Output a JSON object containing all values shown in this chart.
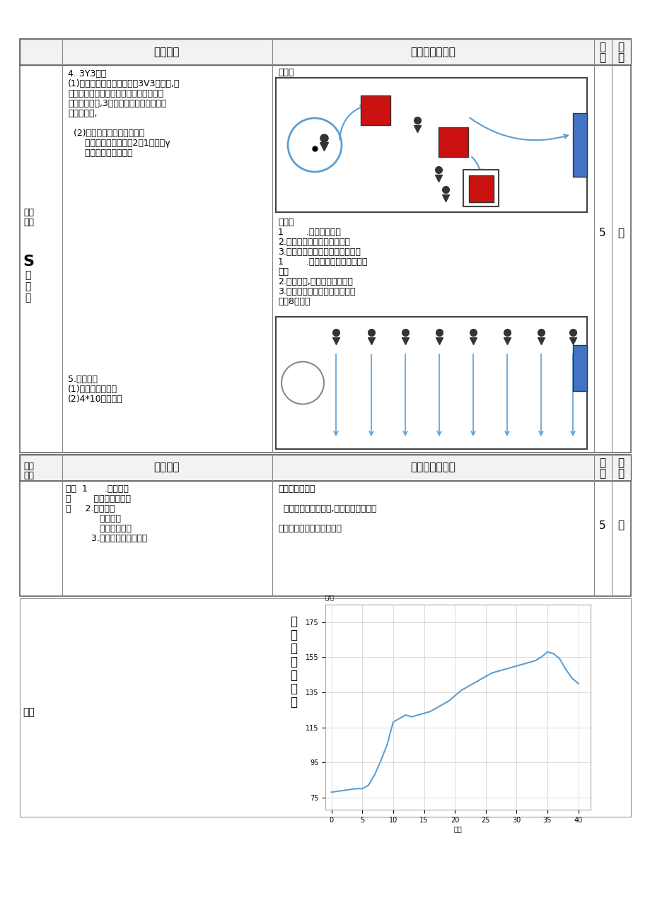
{
  "page_bg": "#ffffff",
  "section1": {
    "header_left": "学习内容",
    "header_center": "组织教法与要求",
    "header_time": "时\n间",
    "header_intensity": "强\n度",
    "ke_jiegou": [
      "课的",
      "结构"
    ],
    "s_label": [
      "S",
      "本",
      "部",
      "分"
    ],
    "left_lines": [
      "4. 3Y3比赛",
      "(1)练习方式：学生前场进行3V3的比赛,设",
      "置多个球门；其中防守方至少露要一名队",
      "员在固定范围,3分钟时间内，进球次数多",
      "的队伍获胜,",
      "",
      "  (2)动作练习的重点与难点：",
      "      重点：成功完成撞墙2过1战术忆γ",
      "      难点：抓住进攻时机"
    ],
    "left_lines2": [
      "5.课课练：",
      "(1)专项敏捷梯练习",
      "(2)4*10折返练习"
    ],
    "right_lines": [
      "组织：",
      "教法：",
      "1        .教师讲解示范",
      "2.引导学生理解战术配合时机",
      "3.巡视指导，个别纠错指导要求：",
      "1        .积极参加比变，遵守比遇",
      "规则",
      "2.认真思考,体会时机的掮要性",
      "3.加强与同伴之间的沟通交流组",
      "银：8路纵队"
    ],
    "time_val": "5",
    "intensity_val": "大"
  },
  "section2": {
    "header_left": "学习内容",
    "header_center": "组织教法与要求",
    "ke_jiegou": [
      "课的",
      "结构"
    ],
    "left_col1": "结束",
    "left_col2": "部",
    "left_col3": "分",
    "left_lines": [
      "结束  1      .放松练习",
      "部        自编姿态放松慷",
      "分     2.集合小结",
      "            教师点评",
      "            学生自评互评",
      "         3.宣布卜课，回收器材"
    ],
    "right_lines": [
      "组织：四列横队",
      "",
      "  教法：教师示范领做,学生模仿嗯版练习",
      "",
      "要求：动作到位，充分拉升"
    ],
    "time_val": "5",
    "intensity_val": "小"
  },
  "chart": {
    "x": [
      0,
      2,
      4,
      5,
      6,
      7,
      8,
      9,
      10,
      11,
      12,
      13,
      14,
      15,
      16,
      17,
      18,
      19,
      20,
      21,
      22,
      23,
      24,
      25,
      26,
      27,
      28,
      29,
      30,
      31,
      32,
      33,
      34,
      35,
      36,
      37,
      38,
      39,
      40
    ],
    "y": [
      78,
      79,
      80,
      80,
      82,
      88,
      96,
      105,
      118,
      120,
      122,
      121,
      122,
      123,
      124,
      126,
      128,
      130,
      133,
      136,
      138,
      140,
      142,
      144,
      146,
      147,
      148,
      149,
      150,
      151,
      152,
      153,
      155,
      158,
      157,
      154,
      148,
      143,
      140
    ],
    "xlabel": "时间",
    "ylabel_chars": [
      "运",
      "动",
      "负",
      "荷",
      "曲",
      "线",
      "图"
    ],
    "yticks": [
      75,
      95,
      115,
      135,
      155,
      175
    ],
    "xticks": [
      0,
      5,
      10,
      15,
      20,
      25,
      30,
      35,
      40
    ],
    "line_color": "#5b9fd4",
    "grid_color": "#cccccc",
    "ylim": [
      68,
      185
    ],
    "xlim": [
      -1,
      42
    ],
    "y_unit": "次/分"
  },
  "small_jie": "小结",
  "colors": {
    "table_border": "#888888",
    "header_bg": "#f2f2f2",
    "red_box": "#cc1111",
    "blue_goal": "#4472c4",
    "arrow_blue": "#5b9fd4",
    "person": "#333333",
    "grid": "#aaaaaa"
  }
}
